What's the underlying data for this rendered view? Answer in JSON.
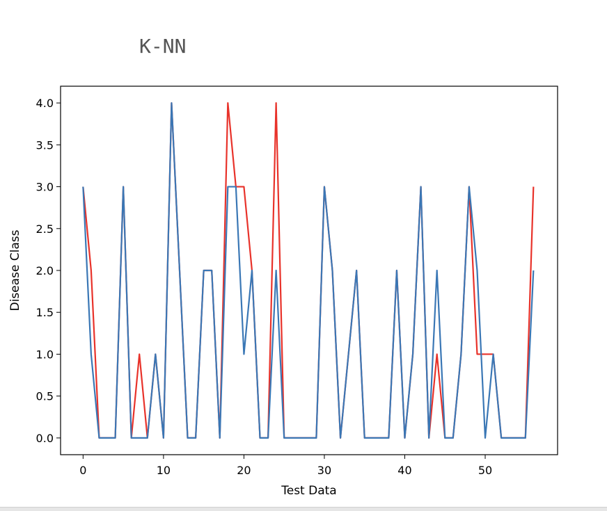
{
  "header": {
    "title": "K-NN"
  },
  "chart_data": {
    "type": "line",
    "title": "",
    "xlabel": "Test Data",
    "ylabel": "Disease Class",
    "xlim": [
      -2.8,
      59.0
    ],
    "ylim": [
      -0.2,
      4.2
    ],
    "xticks": [
      0,
      10,
      20,
      30,
      40,
      50
    ],
    "yticks": [
      0.0,
      0.5,
      1.0,
      1.5,
      2.0,
      2.5,
      3.0,
      3.5,
      4.0
    ],
    "ytick_labels": [
      "0.0",
      "0.5",
      "1.0",
      "1.5",
      "2.0",
      "2.5",
      "3.0",
      "3.5",
      "4.0"
    ],
    "grid": false,
    "series": [
      {
        "color": "#e8322a",
        "values": [
          3,
          2,
          0,
          0,
          0,
          3,
          0,
          1,
          0,
          1,
          0,
          4,
          2,
          0,
          0,
          2,
          2,
          0,
          4,
          3,
          3,
          2,
          0,
          0,
          4,
          0,
          0,
          0,
          0,
          0,
          3,
          2,
          0,
          1,
          2,
          0,
          0,
          0,
          0,
          2,
          0,
          1,
          3,
          0,
          1,
          0,
          0,
          1,
          3,
          1,
          1,
          1,
          0,
          0,
          0,
          0,
          3
        ]
      },
      {
        "color": "#3a77b5",
        "values": [
          3,
          1,
          0,
          0,
          0,
          3,
          0,
          0,
          0,
          1,
          0,
          4,
          2,
          0,
          0,
          2,
          2,
          0,
          3,
          3,
          1,
          2,
          0,
          0,
          2,
          0,
          0,
          0,
          0,
          0,
          3,
          2,
          0,
          1,
          2,
          0,
          0,
          0,
          0,
          2,
          0,
          1,
          3,
          0,
          2,
          0,
          0,
          1,
          3,
          2,
          0,
          1,
          0,
          0,
          0,
          0,
          2
        ]
      }
    ]
  }
}
